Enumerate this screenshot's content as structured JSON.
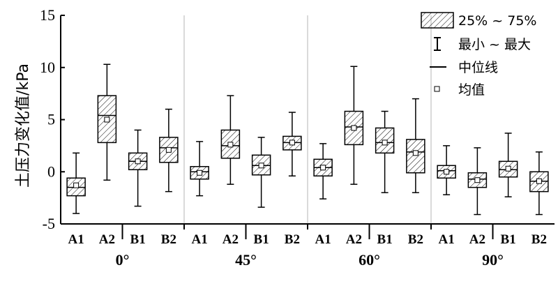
{
  "chart_data": {
    "type": "box",
    "ylabel": "土压力变化值/kPa",
    "ylim": [
      -5,
      15
    ],
    "yticks": [
      -5,
      0,
      5,
      10,
      15
    ],
    "groups": [
      {
        "label": "0°",
        "categories": [
          "A1",
          "A2",
          "B1",
          "B2"
        ]
      },
      {
        "label": "45°",
        "categories": [
          "A1",
          "A2",
          "B1",
          "B2"
        ]
      },
      {
        "label": "60°",
        "categories": [
          "A1",
          "A2",
          "B1",
          "B2"
        ]
      },
      {
        "label": "90°",
        "categories": [
          "A1",
          "A2",
          "B1",
          "B2"
        ]
      }
    ],
    "boxes": [
      {
        "group": "0°",
        "category": "A1",
        "min": -4.0,
        "q1": -2.3,
        "median": -1.5,
        "q3": -0.6,
        "max": 1.8,
        "mean": -1.3
      },
      {
        "group": "0°",
        "category": "A2",
        "min": -0.8,
        "q1": 2.8,
        "median": 5.4,
        "q3": 7.3,
        "max": 10.3,
        "mean": 5.0
      },
      {
        "group": "0°",
        "category": "B1",
        "min": -3.3,
        "q1": 0.2,
        "median": 1.0,
        "q3": 1.8,
        "max": 4.0,
        "mean": 1.0
      },
      {
        "group": "0°",
        "category": "B2",
        "min": -1.9,
        "q1": 0.9,
        "median": 2.3,
        "q3": 3.3,
        "max": 6.0,
        "mean": 2.1
      },
      {
        "group": "45°",
        "category": "A1",
        "min": -2.3,
        "q1": -0.7,
        "median": 0.0,
        "q3": 0.5,
        "max": 2.9,
        "mean": -0.1
      },
      {
        "group": "45°",
        "category": "A2",
        "min": -1.2,
        "q1": 1.3,
        "median": 2.5,
        "q3": 4.0,
        "max": 7.3,
        "mean": 2.6
      },
      {
        "group": "45°",
        "category": "B1",
        "min": -3.4,
        "q1": -0.3,
        "median": 0.6,
        "q3": 1.6,
        "max": 3.3,
        "mean": 0.6
      },
      {
        "group": "45°",
        "category": "B2",
        "min": -0.4,
        "q1": 2.1,
        "median": 2.8,
        "q3": 3.4,
        "max": 5.7,
        "mean": 2.8
      },
      {
        "group": "60°",
        "category": "A1",
        "min": -2.6,
        "q1": -0.4,
        "median": 0.4,
        "q3": 1.2,
        "max": 2.7,
        "mean": 0.4
      },
      {
        "group": "60°",
        "category": "A2",
        "min": -1.2,
        "q1": 2.6,
        "median": 4.3,
        "q3": 5.8,
        "max": 10.1,
        "mean": 4.2
      },
      {
        "group": "60°",
        "category": "B1",
        "min": -2.0,
        "q1": 1.8,
        "median": 2.8,
        "q3": 4.2,
        "max": 5.8,
        "mean": 2.8
      },
      {
        "group": "60°",
        "category": "B2",
        "min": -2.0,
        "q1": -0.1,
        "median": 1.9,
        "q3": 3.1,
        "max": 7.0,
        "mean": 1.8
      },
      {
        "group": "90°",
        "category": "A1",
        "min": -2.2,
        "q1": -0.6,
        "median": 0.1,
        "q3": 0.6,
        "max": 2.5,
        "mean": 0.0
      },
      {
        "group": "90°",
        "category": "A2",
        "min": -4.1,
        "q1": -1.5,
        "median": -0.7,
        "q3": -0.1,
        "max": 2.3,
        "mean": -0.8
      },
      {
        "group": "90°",
        "category": "B1",
        "min": -2.4,
        "q1": -0.5,
        "median": 0.2,
        "q3": 1.0,
        "max": 3.7,
        "mean": 0.3
      },
      {
        "group": "90°",
        "category": "B2",
        "min": -4.1,
        "q1": -1.9,
        "median": -0.9,
        "q3": 0.0,
        "max": 1.9,
        "mean": -0.9
      }
    ],
    "legend": {
      "position": "top-right",
      "items": [
        {
          "symbol": "hatched-box",
          "label": "25% ~ 75%"
        },
        {
          "symbol": "whisker",
          "label": "最小 ~ 最大"
        },
        {
          "symbol": "line",
          "label": "中位线"
        },
        {
          "symbol": "square-marker",
          "label": "均值"
        }
      ]
    },
    "grid": false,
    "group_separators": true
  }
}
